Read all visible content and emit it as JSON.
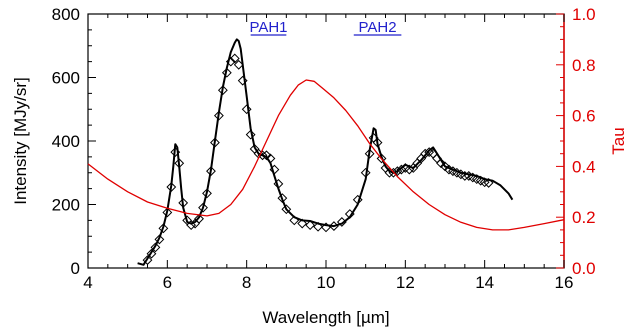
{
  "chart_data": {
    "type": "line",
    "title": "",
    "xlabel": "Wavelength [µm]",
    "ylabel": "Intensity [MJy/sr]",
    "y2label": "Tau",
    "xlim": [
      4,
      16
    ],
    "ylim": [
      0,
      800
    ],
    "y2lim": [
      0.0,
      1.0
    ],
    "xticks": [
      4,
      6,
      8,
      10,
      12,
      14,
      16
    ],
    "xtick_labels": [
      "4",
      "6",
      "8",
      "10",
      "12",
      "14",
      "16"
    ],
    "yticks": [
      0,
      200,
      400,
      600,
      800
    ],
    "ytick_labels": [
      "0",
      "200",
      "400",
      "600",
      "800"
    ],
    "y2ticks": [
      0.0,
      0.2,
      0.4,
      0.6,
      0.8,
      1.0
    ],
    "y2tick_labels": [
      "0.0",
      "0.2",
      "0.4",
      "0.6",
      "0.8",
      "1.0"
    ],
    "grid": false,
    "colors": {
      "observed": "#000000",
      "model": "#000000",
      "tau": "#e00000",
      "bands": "#2222cc",
      "right_axis": "#e00000"
    },
    "band_labels": [
      {
        "text": "PAH1",
        "x_range": [
          8.1,
          9.0
        ]
      },
      {
        "text": "PAH2",
        "x_range": [
          10.7,
          11.9
        ]
      }
    ],
    "series": [
      {
        "style": "solid black line",
        "axis": "left",
        "x": [
          5.25,
          5.4,
          5.5,
          5.6,
          5.7,
          5.8,
          5.9,
          6.0,
          6.1,
          6.15,
          6.2,
          6.25,
          6.3,
          6.35,
          6.4,
          6.5,
          6.6,
          6.7,
          6.8,
          6.9,
          7.0,
          7.1,
          7.2,
          7.3,
          7.4,
          7.5,
          7.6,
          7.7,
          7.75,
          7.8,
          7.85,
          7.9,
          8.0,
          8.1,
          8.2,
          8.3,
          8.4,
          8.5,
          8.6,
          8.7,
          8.8,
          8.9,
          9.0,
          9.2,
          9.4,
          9.6,
          9.8,
          10.0,
          10.2,
          10.4,
          10.6,
          10.8,
          11.0,
          11.1,
          11.2,
          11.25,
          11.3,
          11.4,
          11.5,
          11.6,
          11.7,
          11.8,
          12.0,
          12.2,
          12.4,
          12.6,
          12.7,
          12.8,
          13.0,
          13.2,
          13.4,
          13.6,
          13.8,
          14.0,
          14.2,
          14.4,
          14.6,
          14.7
        ],
        "y": [
          15,
          10,
          30,
          50,
          70,
          95,
          130,
          180,
          260,
          320,
          390,
          380,
          320,
          250,
          190,
          145,
          140,
          145,
          160,
          190,
          240,
          310,
          400,
          490,
          570,
          630,
          680,
          710,
          720,
          715,
          690,
          640,
          540,
          440,
          380,
          360,
          355,
          350,
          330,
          290,
          250,
          215,
          185,
          160,
          150,
          148,
          140,
          135,
          132,
          140,
          160,
          200,
          280,
          370,
          440,
          435,
          390,
          350,
          320,
          305,
          300,
          305,
          325,
          315,
          340,
          370,
          380,
          360,
          320,
          310,
          300,
          295,
          290,
          280,
          275,
          260,
          235,
          215
        ]
      },
      {
        "style": "diamond markers",
        "axis": "left",
        "x": [
          5.5,
          5.6,
          5.7,
          5.8,
          5.9,
          6.0,
          6.1,
          6.2,
          6.3,
          6.4,
          6.5,
          6.6,
          6.7,
          6.8,
          6.9,
          7.0,
          7.1,
          7.2,
          7.3,
          7.4,
          7.5,
          7.6,
          7.7,
          7.8,
          7.9,
          8.0,
          8.1,
          8.2,
          8.3,
          8.4,
          8.5,
          8.6,
          8.7,
          8.8,
          8.9,
          9.0,
          9.2,
          9.4,
          9.6,
          9.8,
          10.0,
          10.2,
          10.4,
          10.6,
          10.8,
          11.0,
          11.1,
          11.2,
          11.3,
          11.4,
          11.5,
          11.6,
          11.7,
          11.8,
          11.9,
          12.0,
          12.1,
          12.2,
          12.3,
          12.4,
          12.5,
          12.6,
          12.7,
          12.8,
          12.9,
          13.0,
          13.1,
          13.2,
          13.3,
          13.4,
          13.5,
          13.6,
          13.7,
          13.8,
          13.9,
          14.0,
          14.1
        ],
        "y": [
          25,
          45,
          65,
          90,
          125,
          175,
          255,
          365,
          330,
          205,
          150,
          135,
          140,
          155,
          190,
          235,
          305,
          395,
          480,
          560,
          615,
          650,
          660,
          640,
          590,
          500,
          420,
          375,
          360,
          355,
          355,
          345,
          310,
          265,
          220,
          185,
          150,
          140,
          135,
          130,
          128,
          132,
          145,
          170,
          215,
          300,
          360,
          410,
          395,
          345,
          315,
          300,
          300,
          305,
          310,
          315,
          310,
          315,
          330,
          345,
          360,
          365,
          360,
          345,
          330,
          320,
          310,
          305,
          300,
          295,
          290,
          290,
          285,
          280,
          275,
          270,
          268
        ]
      },
      {
        "name": "Tau",
        "style": "solid red line",
        "axis": "right",
        "x": [
          4.0,
          4.5,
          5.0,
          5.5,
          6.0,
          6.5,
          7.0,
          7.3,
          7.6,
          7.9,
          8.2,
          8.5,
          8.8,
          9.1,
          9.3,
          9.5,
          9.7,
          9.9,
          10.2,
          10.5,
          10.8,
          11.1,
          11.4,
          11.8,
          12.2,
          12.6,
          13.0,
          13.4,
          13.8,
          14.2,
          14.6,
          15.0,
          15.5,
          16.0
        ],
        "y": [
          0.41,
          0.35,
          0.3,
          0.26,
          0.235,
          0.215,
          0.205,
          0.215,
          0.25,
          0.31,
          0.4,
          0.5,
          0.6,
          0.68,
          0.72,
          0.74,
          0.735,
          0.71,
          0.67,
          0.62,
          0.56,
          0.49,
          0.43,
          0.36,
          0.3,
          0.25,
          0.21,
          0.18,
          0.16,
          0.15,
          0.15,
          0.16,
          0.175,
          0.19
        ]
      }
    ]
  }
}
